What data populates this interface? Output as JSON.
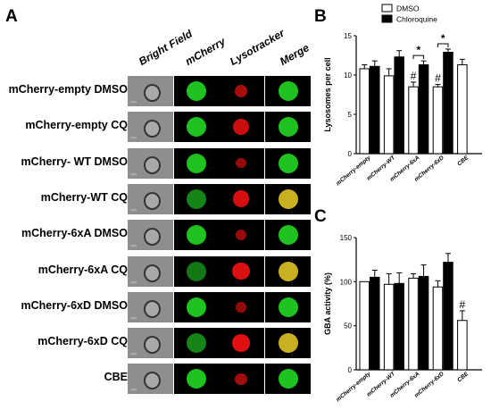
{
  "panel_a": {
    "letter": "A",
    "columns": [
      "Bright Field",
      "mCherry",
      "Lysotracker",
      "Merge"
    ],
    "rows": [
      {
        "label": "mCherry-empty DMSO",
        "green": 1.0,
        "red": 0.5,
        "merge": "green"
      },
      {
        "label": "mCherry-empty CQ",
        "green": 1.0,
        "red": 0.8,
        "merge": "green"
      },
      {
        "label": "mCherry- WT DMSO",
        "green": 1.0,
        "red": 0.3,
        "merge": "green"
      },
      {
        "label": "mCherry-WT CQ",
        "green": 0.5,
        "red": 0.9,
        "merge": "yellow"
      },
      {
        "label": "mCherry-6xA DMSO",
        "green": 1.0,
        "red": 0.35,
        "merge": "green"
      },
      {
        "label": "mCherry-6xA CQ",
        "green": 0.4,
        "red": 0.95,
        "merge": "yellow"
      },
      {
        "label": "mCherry-6xD DMSO",
        "green": 1.0,
        "red": 0.3,
        "merge": "green"
      },
      {
        "label": "mCherry-6xD CQ",
        "green": 0.5,
        "red": 1.0,
        "merge": "yellow"
      },
      {
        "label": "CBE",
        "green": 1.0,
        "red": 0.45,
        "merge": "green"
      }
    ],
    "scale_bar_text": "7 μm"
  },
  "chart_data": [
    {
      "type": "bar",
      "panel": "B",
      "ylabel": "Lysosomes per cell",
      "ylim": [
        0,
        15
      ],
      "yticks": [
        0,
        5,
        10,
        15
      ],
      "categories": [
        "mCherry-empty",
        "mCherry-WT",
        "mCherry-6xA",
        "mCherry-6xD",
        "CBE"
      ],
      "series": [
        {
          "name": "DMSO",
          "values": [
            10.8,
            9.9,
            8.5,
            8.5,
            11.3
          ],
          "errors": [
            0.5,
            0.9,
            0.6,
            0.3,
            0.7
          ]
        },
        {
          "name": "Chloroquine",
          "values": [
            11.1,
            12.3,
            11.3,
            12.9,
            null
          ],
          "errors": [
            0.7,
            0.8,
            0.5,
            0.4,
            null
          ]
        }
      ],
      "hash_marks": [
        [
          "DMSO",
          2
        ],
        [
          "DMSO",
          3
        ]
      ],
      "hash_symbol": "#",
      "significance": [
        {
          "category": 2,
          "symbol": "*"
        },
        {
          "category": 3,
          "symbol": "*"
        }
      ],
      "legend": [
        "DMSO",
        "Chloroquine"
      ],
      "legend_position": "top-right"
    },
    {
      "type": "bar",
      "panel": "C",
      "ylabel": "GBA activity (%)",
      "ylim": [
        0,
        150
      ],
      "yticks": [
        0,
        50,
        100,
        150
      ],
      "categories": [
        "mCherry-empty",
        "mCherry-WT",
        "mCherry-6xA",
        "mCherry-6xD",
        "CBE"
      ],
      "series": [
        {
          "name": "DMSO",
          "values": [
            100,
            97,
            104,
            94,
            56
          ],
          "errors": [
            0,
            12,
            5,
            7,
            11
          ]
        },
        {
          "name": "Chloroquine",
          "values": [
            105,
            98,
            106,
            122,
            null
          ],
          "errors": [
            8,
            12,
            13,
            10,
            null
          ]
        }
      ],
      "hash_marks": [
        [
          "DMSO",
          4
        ]
      ],
      "hash_symbol": "#"
    }
  ],
  "panel_b_letter": "B",
  "panel_c_letter": "C",
  "colors": {
    "dmso_fill": "#ffffff",
    "cq_fill": "#000000",
    "green": "#1fc21f",
    "red": "#e01010",
    "yellow": "#c8b020"
  }
}
